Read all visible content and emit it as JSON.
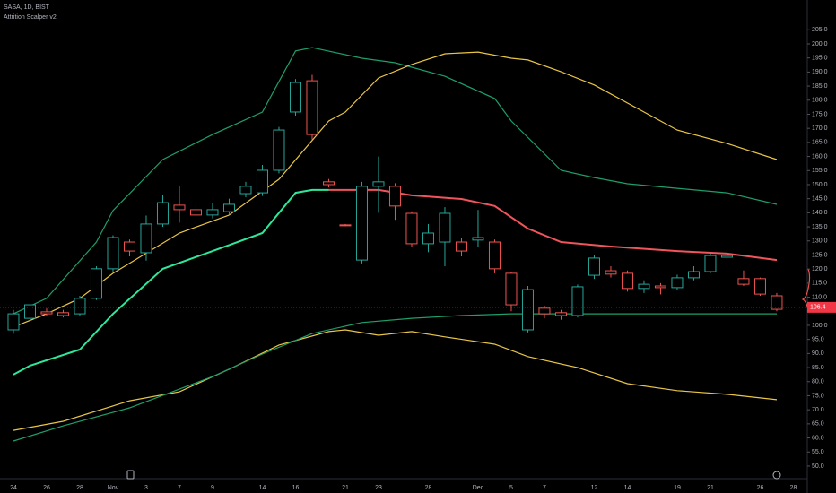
{
  "chart_data": {
    "type": "candlestick",
    "title": "SASA, 1D, BIST",
    "subtitle": "Attrition Scalper v2",
    "categories": [
      "24",
      null,
      "26",
      null,
      "28",
      null,
      "Nov",
      null,
      "3",
      null,
      "7",
      null,
      "9",
      null,
      null,
      "14",
      null,
      "16",
      null,
      null,
      "21",
      null,
      "23",
      null,
      null,
      "28",
      null,
      null,
      "Dec",
      null,
      "5",
      null,
      "7",
      null,
      null,
      "12",
      null,
      "14",
      null,
      null,
      "19",
      null,
      "21",
      null,
      null,
      "26",
      null,
      "28"
    ],
    "open": [
      98.4,
      102.5,
      104.8,
      104.5,
      104.1,
      109.6,
      120.1,
      129.6,
      125.8,
      136,
      142.7,
      141.1,
      139.2,
      140.4,
      146.8,
      147.1,
      155.1,
      175.8,
      186.9,
      151,
      135.7,
      123.2,
      149.4,
      149.4,
      139.8,
      129,
      129.6,
      129.6,
      130.3,
      129.6,
      118.5,
      98.4,
      106.1,
      104.5,
      103.5,
      117.8,
      119.4,
      118.5,
      113.1,
      114,
      113.4,
      116.9,
      119.1,
      124.2,
      116.6,
      116.6,
      110.5,
      null
    ],
    "high": [
      105.5,
      108.5,
      106,
      105.5,
      110.5,
      121,
      132,
      130.5,
      139,
      146.5,
      149.4,
      143,
      143.5,
      145,
      151,
      157,
      170.5,
      187.5,
      189,
      152,
      136,
      151,
      160,
      150.5,
      140.5,
      136,
      142,
      131,
      141,
      130.5,
      119,
      114,
      107,
      105.5,
      114.5,
      125,
      121,
      119.5,
      116,
      115,
      118,
      121,
      125.5,
      126.5,
      119.5,
      117,
      111.5,
      null
    ],
    "low": [
      97,
      101.5,
      103.5,
      102.8,
      103.5,
      109,
      119,
      124.5,
      123,
      135,
      136.5,
      138,
      138,
      139.5,
      145.5,
      146,
      154,
      174.5,
      166,
      149,
      135.2,
      122,
      140,
      137.5,
      128,
      126,
      121,
      124.5,
      128,
      118.5,
      105,
      97.5,
      102.5,
      102,
      102.8,
      116.5,
      117,
      112,
      111.5,
      111,
      112.5,
      116,
      118.5,
      123.5,
      114,
      110.5,
      105,
      null
    ],
    "close": [
      104.1,
      107.3,
      104.1,
      103.5,
      109.6,
      120.1,
      131.2,
      126.4,
      136,
      143.6,
      141.1,
      139.2,
      141.1,
      143,
      149.4,
      155.1,
      169.4,
      186.3,
      167.8,
      150,
      135.5,
      149.4,
      151,
      142.4,
      129,
      132.8,
      139.8,
      126.4,
      131.2,
      120.1,
      107.3,
      112.7,
      104.1,
      103.5,
      113.7,
      123.9,
      118.2,
      113.1,
      114.6,
      113.4,
      116.9,
      119.1,
      124.8,
      124.8,
      114.6,
      111.1,
      105.7,
      null
    ],
    "up_color": "#26a69a",
    "down_color": "#ef5350",
    "lines": [
      {
        "color": "#1e9e6a",
        "x": [
          0,
          2,
          5,
          6,
          9,
          12,
          15,
          17,
          18,
          21,
          23,
          26,
          29,
          30,
          33,
          35,
          37,
          40,
          43,
          46
        ],
        "values": [
          104.1,
          109.6,
          129.6,
          140.8,
          158.9,
          167.8,
          175.8,
          197.5,
          198.7,
          194.9,
          193.3,
          188.5,
          180.6,
          172.6,
          155.1,
          152.5,
          150.3,
          148.7,
          147.1,
          143.0
        ]
      },
      {
        "color": "#e8c547",
        "x": [
          0,
          2,
          4,
          6,
          10,
          13,
          16,
          19,
          20,
          22,
          24,
          26,
          28,
          30,
          31,
          33,
          35,
          38,
          40,
          43,
          46
        ],
        "values": [
          99.4,
          104.1,
          109.6,
          118.5,
          132.8,
          139.2,
          151.9,
          172.6,
          175.8,
          187.9,
          192.7,
          196.5,
          197.1,
          194.9,
          194.3,
          190.1,
          185.4,
          175.8,
          169.4,
          164.6,
          158.9
        ]
      },
      {
        "color": "#2ee89a",
        "x": [
          0,
          1,
          4,
          6,
          9,
          12,
          15,
          17,
          18,
          19
        ],
        "values": [
          82.5,
          85.7,
          91.4,
          104.1,
          120.1,
          126.4,
          132.8,
          147.1,
          148.1,
          148.1
        ]
      },
      {
        "color": "#f0545c",
        "x": [
          19,
          22,
          24,
          27,
          29,
          31,
          33,
          36,
          40,
          43,
          46
        ],
        "values": [
          148.1,
          148.1,
          146.2,
          144.9,
          142.4,
          134.4,
          129.6,
          128.0,
          126.4,
          125.5,
          123.2
        ]
      },
      {
        "color": "#e8c547",
        "x": [
          0,
          3,
          7,
          10,
          13,
          16,
          19,
          20,
          22,
          24,
          26,
          29,
          31,
          34,
          37,
          40,
          43,
          46
        ],
        "values": [
          62.7,
          65.9,
          73.2,
          76.4,
          84.4,
          93.0,
          97.8,
          98.4,
          96.5,
          97.8,
          95.9,
          93.3,
          88.9,
          85.0,
          79.3,
          76.8,
          75.5,
          73.6
        ]
      },
      {
        "color": "#1e9e6a",
        "x": [
          0,
          3,
          7,
          12,
          15,
          18,
          21,
          24,
          27,
          30,
          46
        ],
        "values": [
          58.9,
          64.3,
          70.7,
          81.8,
          89.8,
          97.1,
          101.0,
          102.5,
          103.5,
          104.1,
          104.1
        ]
      }
    ],
    "last_price": 106.4,
    "xlim": [
      -0.81,
      47.84
    ],
    "ylim": [
      46.8,
      215.6
    ],
    "yticks": [
      {
        "value": 50,
        "label": "50.0"
      },
      {
        "value": 55,
        "label": "55.0"
      },
      {
        "value": 60,
        "label": "60.0"
      },
      {
        "value": 65,
        "label": "65.0"
      },
      {
        "value": 70,
        "label": "70.0"
      },
      {
        "value": 75,
        "label": "75.0"
      },
      {
        "value": 80,
        "label": "80.0"
      },
      {
        "value": 85,
        "label": "85.0"
      },
      {
        "value": 90,
        "label": "90.0"
      },
      {
        "value": 95,
        "label": "95.0"
      },
      {
        "value": 100,
        "label": "100.0"
      },
      {
        "value": 110,
        "label": "110.0"
      },
      {
        "value": 115,
        "label": "115.0"
      },
      {
        "value": 120,
        "label": "120.0"
      },
      {
        "value": 125,
        "label": "125.0"
      },
      {
        "value": 130,
        "label": "130.0"
      },
      {
        "value": 135,
        "label": "135.0"
      },
      {
        "value": 140,
        "label": "140.0"
      },
      {
        "value": 145,
        "label": "145.0"
      },
      {
        "value": 150,
        "label": "150.0"
      },
      {
        "value": 155,
        "label": "155.0"
      },
      {
        "value": 160,
        "label": "160.0"
      },
      {
        "value": 165,
        "label": "165.0"
      },
      {
        "value": 170,
        "label": "170.0"
      },
      {
        "value": 175,
        "label": "175.0"
      },
      {
        "value": 180,
        "label": "180.0"
      },
      {
        "value": 185,
        "label": "185.0"
      },
      {
        "value": 190,
        "label": "190.0"
      },
      {
        "value": 195,
        "label": "195.0"
      },
      {
        "value": 200,
        "label": "200.0"
      },
      {
        "value": 205,
        "label": "205.0"
      }
    ]
  }
}
